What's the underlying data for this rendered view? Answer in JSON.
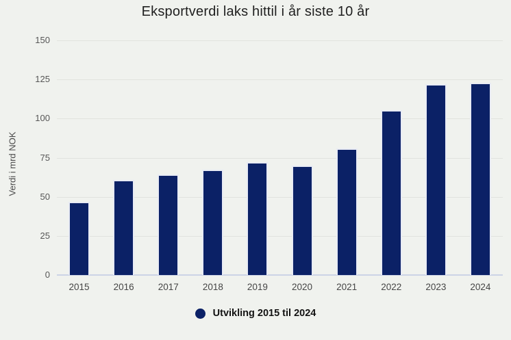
{
  "title": "Eksportverdi laks hittil i år siste 10 år",
  "y_axis_title": "Verdi i mrd NOK",
  "legend": {
    "label": "Utvikling 2015 til 2024",
    "swatch_color": "#0b2166"
  },
  "chart_data": {
    "type": "bar",
    "title": "Eksportverdi laks hittil i år siste 10 år",
    "xlabel": "",
    "ylabel": "Verdi i mrd NOK",
    "categories": [
      "2015",
      "2016",
      "2017",
      "2018",
      "2019",
      "2020",
      "2021",
      "2022",
      "2023",
      "2024"
    ],
    "values": [
      47,
      61,
      64.5,
      67.5,
      72,
      70,
      81,
      105.5,
      122.2,
      122.7
    ],
    "ylim": [
      0,
      150
    ],
    "yticks": [
      0,
      25,
      50,
      75,
      100,
      125,
      150
    ],
    "grid": true,
    "legend_position": "bottom",
    "legend_entries": [
      "Utvikling 2015 til 2024"
    ],
    "bar_color": "#0b2166"
  },
  "colors": {
    "background": "#f0f2ee",
    "bar": "#0b2166",
    "bar_outline": "#e8ebf4",
    "gridline": "#e1e3de",
    "baseline": "#ccd3e6",
    "y_tick_text": "#565656",
    "x_tick_text": "#454545",
    "title_text": "#1f1f1f",
    "legend_text": "#121212"
  }
}
